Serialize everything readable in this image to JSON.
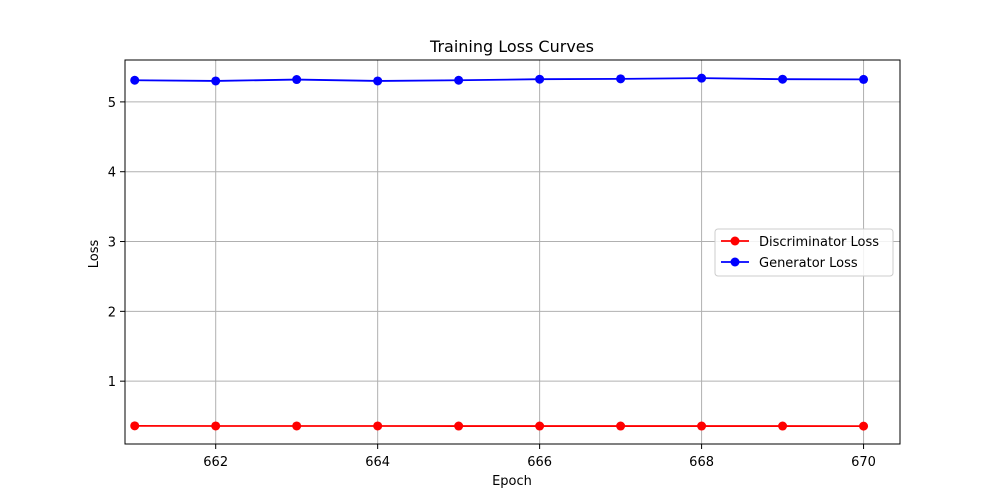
{
  "chart_data": {
    "type": "line",
    "title": "Training Loss Curves",
    "xlabel": "Epoch",
    "ylabel": "Loss",
    "x": [
      661,
      662,
      663,
      664,
      665,
      666,
      667,
      668,
      669,
      670
    ],
    "xlim": [
      660.88,
      670.45
    ],
    "ylim": [
      0.1,
      5.6
    ],
    "xticks": [
      662,
      664,
      666,
      668,
      670
    ],
    "yticks": [
      1,
      2,
      3,
      4,
      5
    ],
    "grid": true,
    "legend_position": "center-right",
    "series": [
      {
        "name": "Discriminator Loss",
        "color": "#ff0000",
        "marker": "circle",
        "values": [
          0.36,
          0.358,
          0.358,
          0.358,
          0.357,
          0.357,
          0.357,
          0.357,
          0.357,
          0.356
        ]
      },
      {
        "name": "Generator Loss",
        "color": "#0000ff",
        "marker": "circle",
        "values": [
          5.31,
          5.3,
          5.32,
          5.3,
          5.31,
          5.325,
          5.33,
          5.34,
          5.325,
          5.322
        ]
      }
    ]
  }
}
